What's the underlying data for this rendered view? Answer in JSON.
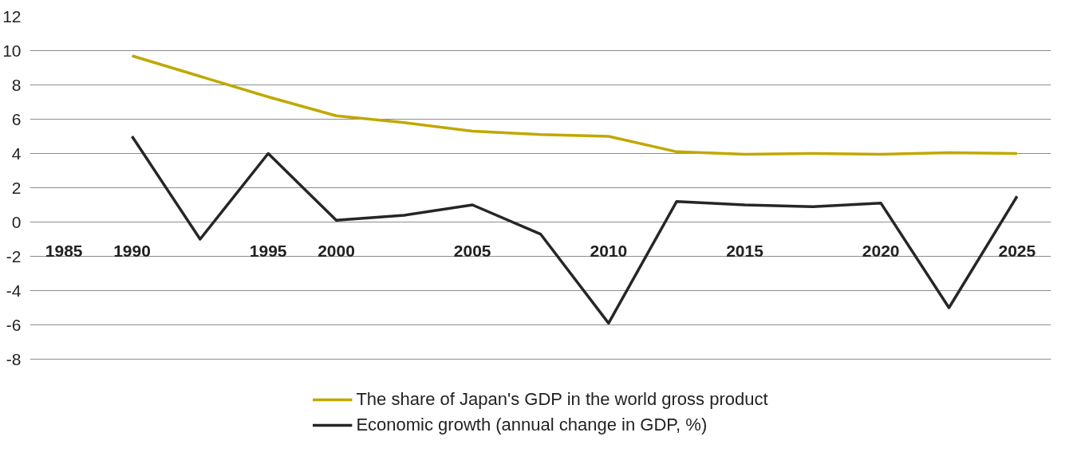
{
  "chart_data": {
    "type": "line",
    "categories": [
      "1985",
      "1990",
      null,
      "1995",
      "2000",
      null,
      "2005",
      null,
      "2010",
      null,
      "2015",
      null,
      "2020",
      null,
      "2025"
    ],
    "series": [
      {
        "name": "The share of Japan's GDP in the world gross product",
        "color": "#c0a800",
        "values": [
          null,
          9.7,
          8.5,
          7.3,
          6.2,
          5.8,
          5.3,
          5.1,
          5.0,
          4.1,
          3.95,
          4.0,
          3.95,
          4.05,
          4.0
        ]
      },
      {
        "name": "Economic growth (annual change in GDP, %)",
        "color": "#262626",
        "values": [
          null,
          5.0,
          -1.0,
          4.0,
          0.1,
          0.4,
          1.0,
          -0.7,
          -5.9,
          1.2,
          1.0,
          0.9,
          1.1,
          -5.0,
          1.5
        ]
      }
    ],
    "ylim": [
      -8,
      12
    ],
    "yticks": [
      -8,
      -6,
      -4,
      -2,
      0,
      2,
      4,
      6,
      8,
      10,
      12
    ],
    "grid": "y",
    "legend": "bottom",
    "marker": "none",
    "line_style": "solid"
  }
}
